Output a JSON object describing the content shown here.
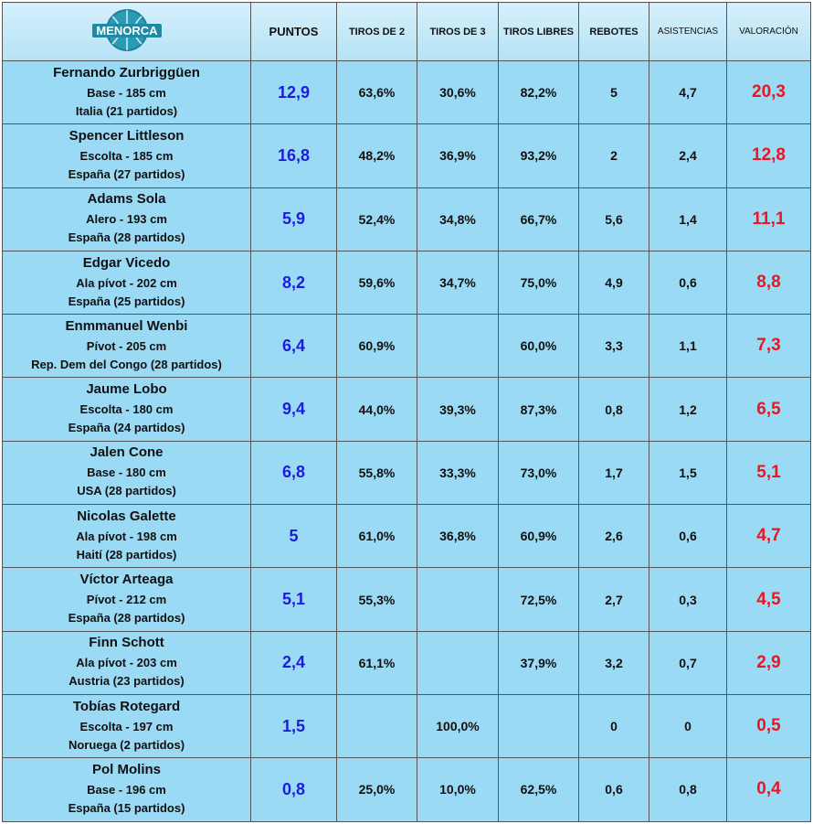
{
  "header": {
    "logo": "MENORCA",
    "columns": [
      "PUNTOS",
      "TIROS DE 2",
      "TIROS DE 3",
      "TIROS LIBRES",
      "REBOTES",
      "ASISTENCIAS",
      "VALORACIÓN"
    ]
  },
  "table": {
    "rows": [
      {
        "name": "Fernando Zurbriggüen",
        "position": "Base - 185 cm",
        "origin": "Italia (21 partidos)",
        "stats": [
          "12,9",
          "63,6%",
          "30,6%",
          "82,2%",
          "5",
          "4,7",
          "20,3"
        ]
      },
      {
        "name": "Spencer Littleson",
        "position": "Escolta - 185 cm",
        "origin": "España (27 partidos)",
        "stats": [
          "16,8",
          "48,2%",
          "36,9%",
          "93,2%",
          "2",
          "2,4",
          "12,8"
        ]
      },
      {
        "name": "Adams Sola",
        "position": "Alero - 193 cm",
        "origin": "España (28 partidos)",
        "stats": [
          "5,9",
          "52,4%",
          "34,8%",
          "66,7%",
          "5,6",
          "1,4",
          "11,1"
        ]
      },
      {
        "name": "Edgar Vicedo",
        "position": "Ala pívot - 202 cm",
        "origin": "España (25 partidos)",
        "stats": [
          "8,2",
          "59,6%",
          "34,7%",
          "75,0%",
          "4,9",
          "0,6",
          "8,8"
        ]
      },
      {
        "name": "Enmmanuel Wenbi",
        "position": "Pívot - 205 cm",
        "origin": "Rep. Dem del Congo (28 partidos)",
        "stats": [
          "6,4",
          "60,9%",
          null,
          "60,0%",
          "3,3",
          "1,1",
          "7,3"
        ]
      },
      {
        "name": "Jaume Lobo",
        "position": "Escolta - 180 cm",
        "origin": "España (24 partidos)",
        "stats": [
          "9,4",
          "44,0%",
          "39,3%",
          "87,3%",
          "0,8",
          "1,2",
          "6,5"
        ]
      },
      {
        "name": "Jalen Cone",
        "position": "Base - 180 cm",
        "origin": "USA (28 partidos)",
        "stats": [
          "6,8",
          "55,8%",
          "33,3%",
          "73,0%",
          "1,7",
          "1,5",
          "5,1"
        ]
      },
      {
        "name": "Nicolas Galette",
        "position": "Ala pívot - 198 cm",
        "origin": "Haití (28 partidos)",
        "stats": [
          "5",
          "61,0%",
          "36,8%",
          "60,9%",
          "2,6",
          "0,6",
          "4,7"
        ]
      },
      {
        "name": "Víctor Arteaga",
        "position": "Pívot - 212 cm",
        "origin": "España (28 partidos)",
        "stats": [
          "5,1",
          "55,3%",
          null,
          "72,5%",
          "2,7",
          "0,3",
          "4,5"
        ]
      },
      {
        "name": "Finn Schott",
        "position": "Ala pívot - 203 cm",
        "origin": "Austria (23 partidos)",
        "stats": [
          "2,4",
          "61,1%",
          null,
          "37,9%",
          "3,2",
          "0,7",
          "2,9"
        ]
      },
      {
        "name": "Tobías Rotegard",
        "position": "Escolta - 197 cm",
        "origin": "Noruega (2 partidos)",
        "stats": [
          "1,5",
          null,
          "100,0%",
          null,
          "0",
          "0",
          "0,5"
        ]
      },
      {
        "name": "Pol Molins",
        "position": "Base - 196 cm",
        "origin": "España (15 partidos)",
        "stats": [
          "0,8",
          "25,0%",
          "10,0%",
          "62,5%",
          "0,6",
          "0,8",
          "0,4"
        ]
      }
    ]
  }
}
